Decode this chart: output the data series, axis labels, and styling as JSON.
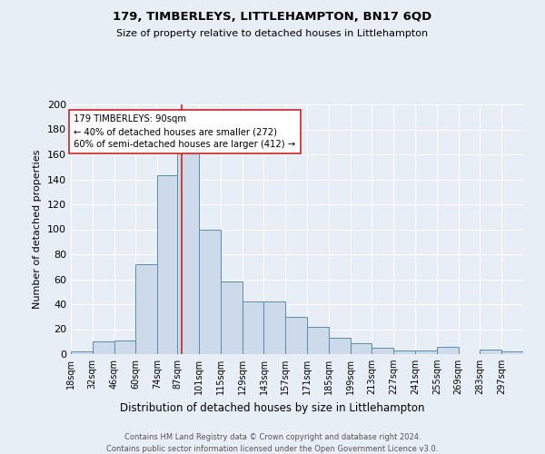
{
  "title": "179, TIMBERLEYS, LITTLEHAMPTON, BN17 6QD",
  "subtitle": "Size of property relative to detached houses in Littlehampton",
  "xlabel": "Distribution of detached houses by size in Littlehampton",
  "ylabel": "Number of detached properties",
  "footnote1": "Contains HM Land Registry data © Crown copyright and database right 2024.",
  "footnote2": "Contains public sector information licensed under the Open Government Licence v3.0.",
  "annotation_title": "179 TIMBERLEYS: 90sqm",
  "annotation_line1": "← 40% of detached houses are smaller (272)",
  "annotation_line2": "60% of semi-detached houses are larger (412) →",
  "bar_color": "#ccdaea",
  "bar_edge_color": "#5b8db0",
  "background_color": "#e8eef5",
  "grid_color": "#ffffff",
  "annotation_box_color": "#ffffff",
  "annotation_box_edge": "#cc2222",
  "vline_color": "#cc2222",
  "vline_x": 90,
  "categories": [
    "18sqm",
    "32sqm",
    "46sqm",
    "60sqm",
    "74sqm",
    "87sqm",
    "101sqm",
    "115sqm",
    "129sqm",
    "143sqm",
    "157sqm",
    "171sqm",
    "185sqm",
    "199sqm",
    "213sqm",
    "227sqm",
    "241sqm",
    "255sqm",
    "269sqm",
    "283sqm",
    "297sqm"
  ],
  "bin_edges": [
    18,
    32,
    46,
    60,
    74,
    87,
    101,
    115,
    129,
    143,
    157,
    171,
    185,
    199,
    213,
    227,
    241,
    255,
    269,
    283,
    297,
    311
  ],
  "values": [
    2,
    10,
    11,
    72,
    143,
    165,
    100,
    58,
    42,
    42,
    30,
    22,
    13,
    9,
    5,
    3,
    3,
    6,
    0,
    4,
    2
  ],
  "ylim": [
    0,
    200
  ],
  "yticks": [
    0,
    20,
    40,
    60,
    80,
    100,
    120,
    140,
    160,
    180,
    200
  ]
}
